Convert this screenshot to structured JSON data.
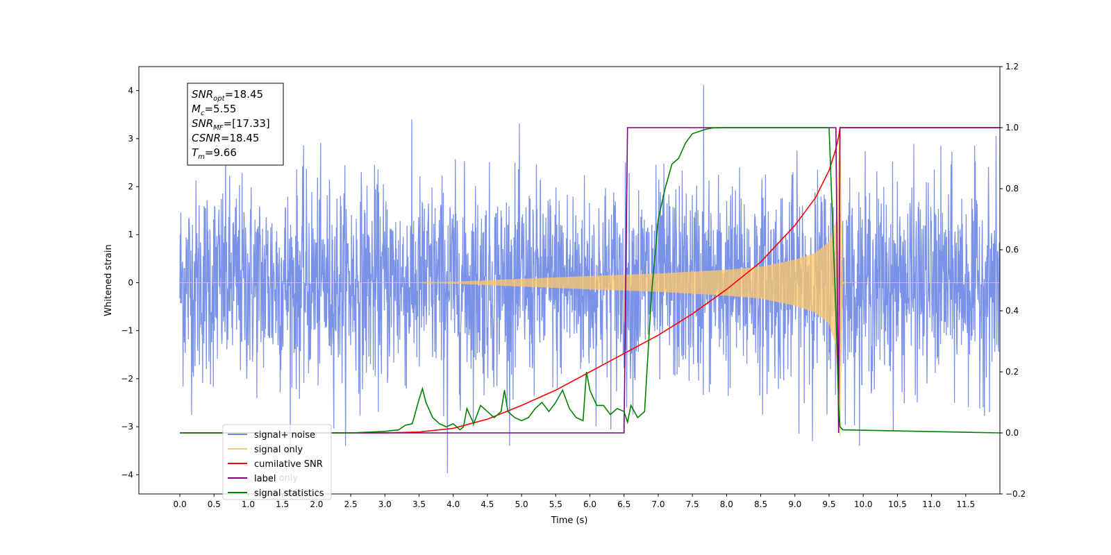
{
  "chart_data": {
    "type": "line",
    "xlabel": "Time (s)",
    "ylabel": "Whitened strain",
    "xlim": [
      -0.6,
      12.0
    ],
    "ylim_left": [
      -4.4,
      4.5
    ],
    "ylim_right": [
      -0.2,
      1.2
    ],
    "x_ticks": [
      0.0,
      0.5,
      1.0,
      1.5,
      2.0,
      2.5,
      3.0,
      3.5,
      4.0,
      4.5,
      5.0,
      5.5,
      6.0,
      6.5,
      7.0,
      7.5,
      8.0,
      8.5,
      9.0,
      9.5,
      10.0,
      10.5,
      11.0,
      11.5
    ],
    "x_tick_labels": [
      "0.0",
      "0.5",
      "1.0",
      "1.5",
      "2.0",
      "2.5",
      "3.0",
      "3.5",
      "4.0",
      "4.5",
      "5.0",
      "5.5",
      "6.0",
      "6.5",
      "7.0",
      "7.5",
      "8.0",
      "8.5",
      "9.0",
      "9.5",
      "10.0",
      "10.5",
      "11.0",
      "11.5"
    ],
    "y_left_ticks": [
      -4,
      -3,
      -2,
      -1,
      0,
      1,
      2,
      3,
      4
    ],
    "y_left_tick_labels": [
      "−4",
      "−3",
      "−2",
      "−1",
      "0",
      "1",
      "2",
      "3",
      "4"
    ],
    "y_right_ticks": [
      -0.2,
      0.0,
      0.2,
      0.4,
      0.6,
      0.8,
      1.0,
      1.2
    ],
    "y_right_tick_labels": [
      "−0.2",
      "0.0",
      "0.2",
      "0.4",
      "0.6",
      "0.8",
      "1.0",
      "1.2"
    ],
    "grid": false,
    "legend_placement": "lower-left",
    "legend": [
      {
        "name": "signal+ noise",
        "color": "#6b86e6"
      },
      {
        "name": "signal only",
        "color": "#ffc766"
      },
      {
        "name": "cumilative SNR",
        "color": "#ff0000"
      },
      {
        "name": "label",
        "color": "#800080"
      },
      {
        "name": "signal statistics",
        "color": "#008000"
      }
    ],
    "legend_ghost_text": [
      "label only",
      "signal only"
    ],
    "annotation_box": [
      {
        "base": "SNR",
        "sub": "opt",
        "rest": "=18.45"
      },
      {
        "base": "M",
        "sub": "c",
        "rest": "=5.55"
      },
      {
        "base": "SNR",
        "sub": "MF",
        "rest": "=[17.33]"
      },
      {
        "base": "CSNR",
        "sub": "",
        "rest": "=18.45"
      },
      {
        "base": "T",
        "sub": "m",
        "rest": "=9.66"
      }
    ],
    "series": [
      {
        "name": "signal+ noise",
        "axis": "left",
        "color": "#6b86e6",
        "description_values": {
          "x_start": 0.0,
          "x_end": 12.0,
          "noise_std": 1.0,
          "signal_amp_at_merger": 2.8,
          "merger_time": 9.66,
          "peak_max": 4.12,
          "peak_min": -3.97
        }
      },
      {
        "name": "signal only",
        "axis": "left",
        "color": "#ffc766",
        "envelope": {
          "x": [
            0.0,
            3.5,
            4.0,
            5.0,
            6.0,
            7.0,
            8.0,
            8.5,
            9.0,
            9.3,
            9.5,
            9.6,
            9.66,
            9.7,
            12.0
          ],
          "amp": [
            0.0,
            0.0,
            0.02,
            0.08,
            0.14,
            0.19,
            0.27,
            0.33,
            0.48,
            0.62,
            0.85,
            1.3,
            3.3,
            0.02,
            0.0
          ]
        }
      },
      {
        "name": "cumilative SNR",
        "axis": "right",
        "color": "#ff0000",
        "x": [
          0.0,
          3.0,
          3.5,
          4.0,
          4.5,
          5.0,
          5.5,
          6.0,
          6.5,
          7.0,
          7.5,
          8.0,
          8.5,
          9.0,
          9.3,
          9.5,
          9.6,
          9.64,
          9.66,
          9.7,
          12.0
        ],
        "y": [
          0.0,
          0.0,
          0.003,
          0.015,
          0.045,
          0.09,
          0.14,
          0.2,
          0.26,
          0.32,
          0.39,
          0.47,
          0.56,
          0.68,
          0.77,
          0.86,
          0.93,
          0.97,
          1.0,
          1.0,
          1.0
        ]
      },
      {
        "name": "label",
        "axis": "right",
        "color": "#800080",
        "x": [
          0.0,
          6.5,
          6.55,
          9.6,
          9.64,
          9.66,
          9.7,
          12.0
        ],
        "y": [
          0.0,
          0.0,
          1.0,
          1.0,
          0.0,
          1.0,
          1.0,
          1.0
        ]
      },
      {
        "name": "signal statistics",
        "axis": "right",
        "color": "#008000",
        "x": [
          0.0,
          2.5,
          3.0,
          3.2,
          3.3,
          3.4,
          3.5,
          3.55,
          3.6,
          3.7,
          3.8,
          3.9,
          4.0,
          4.1,
          4.15,
          4.2,
          4.3,
          4.4,
          4.5,
          4.6,
          4.7,
          4.75,
          4.8,
          4.9,
          5.0,
          5.1,
          5.2,
          5.3,
          5.4,
          5.5,
          5.6,
          5.7,
          5.8,
          5.9,
          5.95,
          6.0,
          6.1,
          6.2,
          6.3,
          6.4,
          6.5,
          6.55,
          6.6,
          6.7,
          6.8,
          6.9,
          7.0,
          7.1,
          7.2,
          7.3,
          7.4,
          7.5,
          7.7,
          7.8,
          8.0,
          9.5,
          9.6,
          9.64,
          9.66,
          9.7,
          12.0
        ],
        "y": [
          0.0,
          0.0,
          0.005,
          0.01,
          0.025,
          0.03,
          0.11,
          0.145,
          0.1,
          0.05,
          0.03,
          0.02,
          0.03,
          0.01,
          0.02,
          0.08,
          0.03,
          0.09,
          0.07,
          0.05,
          0.07,
          0.14,
          0.07,
          0.05,
          0.04,
          0.05,
          0.08,
          0.1,
          0.07,
          0.1,
          0.14,
          0.08,
          0.05,
          0.04,
          0.2,
          0.14,
          0.09,
          0.09,
          0.06,
          0.08,
          0.07,
          0.035,
          0.09,
          0.05,
          0.07,
          0.45,
          0.7,
          0.8,
          0.88,
          0.9,
          0.95,
          0.98,
          0.995,
          0.999,
          1.0,
          1.0,
          0.4,
          0.1,
          0.02,
          0.01,
          0.0
        ]
      }
    ]
  }
}
